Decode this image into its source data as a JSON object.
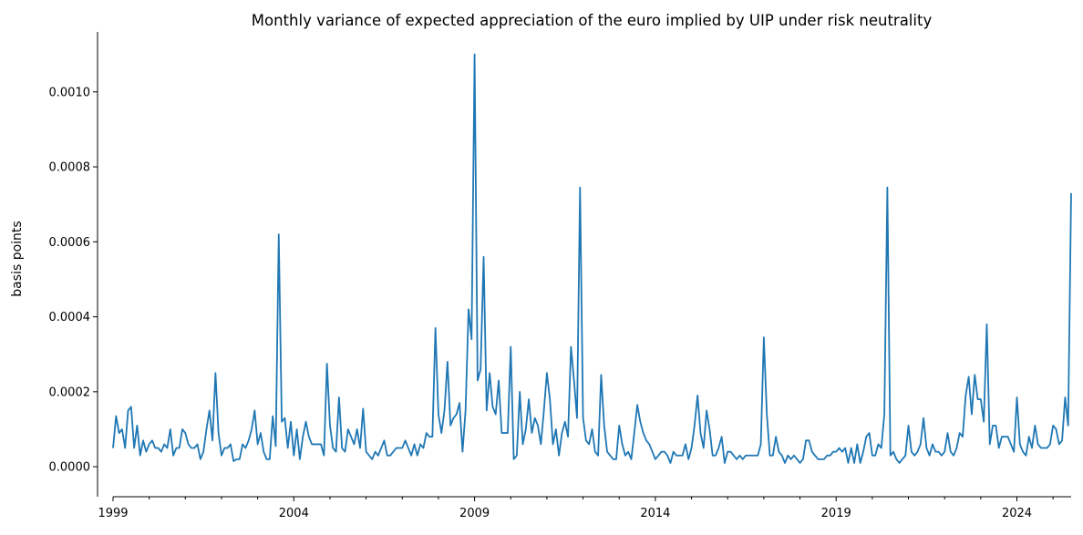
{
  "chart_data": {
    "type": "line",
    "title": "Monthly variance of expected appreciation of the euro implied by UIP under risk neutrality",
    "xlabel": "",
    "ylabel": "basis points",
    "xlim": [
      "1999-01",
      "2025-07"
    ],
    "ylim": [
      -8e-05,
      0.00116
    ],
    "x_ticks": [
      "1999",
      "2004",
      "2009",
      "2014",
      "2019",
      "2024"
    ],
    "y_ticks": [
      "0.0000",
      "0.0002",
      "0.0004",
      "0.0006",
      "0.0008",
      "0.0010"
    ],
    "grid": false,
    "legend": "none",
    "series": [
      {
        "color": "#1f77b4",
        "start": "1999-01",
        "frequency": "monthly",
        "values": [
          5e-05,
          0.000135,
          9e-05,
          0.0001,
          5e-05,
          0.00015,
          0.00016,
          5e-05,
          0.00011,
          3e-05,
          7e-05,
          4e-05,
          6e-05,
          7e-05,
          5e-05,
          5e-05,
          4e-05,
          6e-05,
          5e-05,
          0.0001,
          3e-05,
          5e-05,
          5e-05,
          0.0001,
          9e-05,
          6e-05,
          5e-05,
          5e-05,
          6e-05,
          2e-05,
          4e-05,
          0.0001,
          0.00015,
          7e-05,
          0.00025,
          9e-05,
          3e-05,
          5e-05,
          5e-05,
          6e-05,
          1.5e-05,
          2e-05,
          2e-05,
          6e-05,
          5e-05,
          7e-05,
          0.0001,
          0.00015,
          6e-05,
          9e-05,
          4e-05,
          2e-05,
          2e-05,
          0.000135,
          5.5e-05,
          0.00062,
          0.00012,
          0.00013,
          5e-05,
          0.00012,
          3e-05,
          0.0001,
          2e-05,
          8e-05,
          0.00012,
          8e-05,
          6e-05,
          6e-05,
          6e-05,
          6e-05,
          3e-05,
          0.000275,
          0.00011,
          5e-05,
          4e-05,
          0.000185,
          5e-05,
          4e-05,
          0.0001,
          8e-05,
          6e-05,
          0.0001,
          5e-05,
          0.000155,
          4e-05,
          3e-05,
          2e-05,
          4e-05,
          3e-05,
          5e-05,
          7e-05,
          3e-05,
          3e-05,
          4e-05,
          5e-05,
          5e-05,
          5e-05,
          7e-05,
          5e-05,
          3e-05,
          6e-05,
          3e-05,
          6e-05,
          5e-05,
          9e-05,
          8e-05,
          8e-05,
          0.00037,
          0.00014,
          9e-05,
          0.00015,
          0.00028,
          0.00011,
          0.00013,
          0.00014,
          0.00017,
          4e-05,
          0.00015,
          0.00042,
          0.00034,
          0.0011,
          0.00023,
          0.00026,
          0.00056,
          0.00015,
          0.00025,
          0.00016,
          0.00014,
          0.00023,
          9e-05,
          9e-05,
          9e-05,
          0.00032,
          2e-05,
          3e-05,
          0.0002,
          6e-05,
          0.0001,
          0.00018,
          9e-05,
          0.00013,
          0.00011,
          6e-05,
          0.00015,
          0.00025,
          0.00018,
          6e-05,
          0.0001,
          3e-05,
          9e-05,
          0.00012,
          8e-05,
          0.00032,
          0.00023,
          0.00013,
          0.000745,
          0.00013,
          7e-05,
          6e-05,
          0.0001,
          4e-05,
          3e-05,
          0.000245,
          0.00011,
          4e-05,
          3e-05,
          2e-05,
          2e-05,
          0.00011,
          6e-05,
          3e-05,
          4e-05,
          2e-05,
          9e-05,
          0.000165,
          0.00012,
          9e-05,
          7e-05,
          6e-05,
          4e-05,
          2e-05,
          3e-05,
          4e-05,
          4e-05,
          3e-05,
          1e-05,
          4e-05,
          3e-05,
          3e-05,
          3e-05,
          6e-05,
          2e-05,
          5e-05,
          0.00011,
          0.00019,
          9e-05,
          5e-05,
          0.00015,
          0.0001,
          3e-05,
          3e-05,
          5e-05,
          8e-05,
          1e-05,
          4e-05,
          4e-05,
          3e-05,
          2e-05,
          3e-05,
          2e-05,
          3e-05,
          3e-05,
          3e-05,
          3e-05,
          3e-05,
          6e-05,
          0.000345,
          0.00014,
          3e-05,
          3e-05,
          8e-05,
          4e-05,
          3e-05,
          1e-05,
          3e-05,
          2e-05,
          3e-05,
          2e-05,
          1e-05,
          2e-05,
          7e-05,
          7e-05,
          4e-05,
          3e-05,
          2e-05,
          2e-05,
          2e-05,
          3e-05,
          3e-05,
          4e-05,
          4e-05,
          5e-05,
          4e-05,
          5e-05,
          1e-05,
          5e-05,
          1e-05,
          6e-05,
          1e-05,
          4e-05,
          8e-05,
          9e-05,
          3e-05,
          3e-05,
          6e-05,
          5e-05,
          0.00014,
          0.000745,
          3e-05,
          4e-05,
          2e-05,
          1e-05,
          2e-05,
          3e-05,
          0.00011,
          4e-05,
          3e-05,
          4e-05,
          6e-05,
          0.00013,
          5e-05,
          3e-05,
          6e-05,
          4e-05,
          4e-05,
          3e-05,
          4e-05,
          9e-05,
          4e-05,
          3e-05,
          5e-05,
          9e-05,
          8e-05,
          0.00019,
          0.00024,
          0.00014,
          0.000245,
          0.00018,
          0.00018,
          0.00012,
          0.00038,
          6e-05,
          0.00011,
          0.00011,
          5e-05,
          8e-05,
          8e-05,
          8e-05,
          6e-05,
          4e-05,
          0.000185,
          6e-05,
          4e-05,
          3e-05,
          8e-05,
          5e-05,
          0.00011,
          6e-05,
          5e-05,
          5e-05,
          5e-05,
          6e-05,
          0.00011,
          0.0001,
          6e-05,
          7e-05,
          0.000185,
          0.00011,
          0.00073
        ]
      }
    ]
  }
}
